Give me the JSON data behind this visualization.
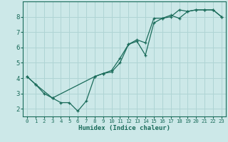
{
  "xlabel": "Humidex (Indice chaleur)",
  "bg_color": "#cce8e8",
  "grid_color": "#afd4d4",
  "line_color": "#1a6b5a",
  "xlim": [
    -0.5,
    23.5
  ],
  "ylim": [
    1.5,
    9.0
  ],
  "xticks": [
    0,
    1,
    2,
    3,
    4,
    5,
    6,
    7,
    8,
    9,
    10,
    11,
    12,
    13,
    14,
    15,
    16,
    17,
    18,
    19,
    20,
    21,
    22,
    23
  ],
  "yticks": [
    2,
    3,
    4,
    5,
    6,
    7,
    8
  ],
  "line1_x": [
    0,
    1,
    2,
    3,
    4,
    5,
    6,
    7,
    8,
    9,
    10,
    11,
    12,
    13,
    14,
    15,
    16,
    17,
    18,
    19,
    20,
    21,
    22,
    23
  ],
  "line1_y": [
    4.1,
    3.6,
    3.0,
    2.7,
    2.4,
    2.4,
    1.85,
    2.5,
    4.1,
    4.3,
    4.4,
    5.0,
    6.2,
    6.5,
    6.3,
    7.9,
    7.9,
    8.0,
    8.45,
    8.35,
    8.45,
    8.45,
    8.45,
    8.0
  ],
  "line2_x": [
    0,
    1,
    3,
    8,
    9,
    10,
    11,
    12,
    13,
    14,
    15,
    16,
    17,
    18,
    19,
    20,
    21,
    22,
    23
  ],
  "line2_y": [
    4.1,
    3.6,
    2.7,
    4.1,
    4.3,
    4.5,
    5.3,
    6.2,
    6.4,
    5.5,
    7.6,
    7.9,
    8.1,
    7.9,
    8.35,
    8.45,
    8.45,
    8.45,
    8.0
  ]
}
